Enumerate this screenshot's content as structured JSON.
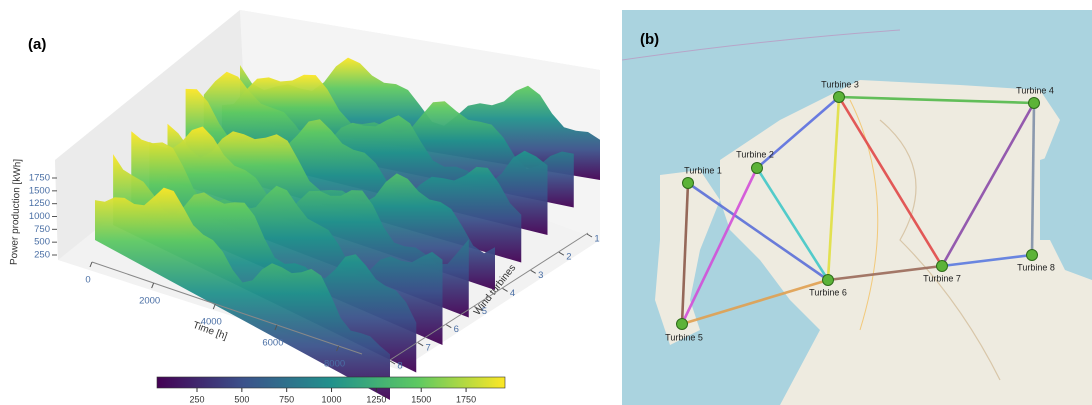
{
  "panel_a": {
    "label": "(a)",
    "type": "surface3d",
    "zlabel": "Power production [kWh]",
    "xlabel": "Time [h]",
    "ylabel": "Wind turbines",
    "xlim": [
      0,
      8760
    ],
    "xticks": [
      0,
      2000,
      4000,
      6000,
      8000
    ],
    "ylim": [
      1,
      8
    ],
    "yticks": [
      1,
      2,
      3,
      4,
      5,
      6,
      7,
      8
    ],
    "zlim": [
      250,
      1750
    ],
    "zticks": [
      250,
      500,
      750,
      1000,
      1250,
      1500,
      1750
    ],
    "clim": [
      27,
      1967
    ],
    "colorbar_ticks": [
      250,
      500,
      750,
      1000,
      1250,
      1500,
      1750
    ],
    "colormap": [
      "#440154",
      "#3b528b",
      "#21918c",
      "#5ec962",
      "#fde725"
    ]
  },
  "panel_b": {
    "label": "(b)",
    "node_color": "#5cb338",
    "nodes": [
      {
        "label": "Turbine 1"
      },
      {
        "label": "Turbine 2"
      },
      {
        "label": "Turbine 3"
      },
      {
        "label": "Turbine 4"
      },
      {
        "label": "Turbine 5"
      },
      {
        "label": "Turbine 6"
      },
      {
        "label": "Turbine 7"
      },
      {
        "label": "Turbine 8"
      }
    ],
    "edges": [
      {
        "from": 0,
        "to": 4,
        "color": "#8b5a4a"
      },
      {
        "from": 0,
        "to": 5,
        "color": "#5a6fd8"
      },
      {
        "from": 1,
        "to": 4,
        "color": "#d24fd8"
      },
      {
        "from": 1,
        "to": 5,
        "color": "#40c8c8"
      },
      {
        "from": 1,
        "to": 2,
        "color": "#5a6fe0"
      },
      {
        "from": 2,
        "to": 3,
        "color": "#52b94a"
      },
      {
        "from": 2,
        "to": 5,
        "color": "#e0e040"
      },
      {
        "from": 2,
        "to": 6,
        "color": "#e04848"
      },
      {
        "from": 3,
        "to": 6,
        "color": "#8a4aa8"
      },
      {
        "from": 3,
        "to": 7,
        "color": "#8090a8"
      },
      {
        "from": 5,
        "to": 6,
        "color": "#9a6a5a"
      },
      {
        "from": 6,
        "to": 7,
        "color": "#5a7ae0"
      },
      {
        "from": 4,
        "to": 5,
        "color": "#e0a050"
      }
    ]
  }
}
